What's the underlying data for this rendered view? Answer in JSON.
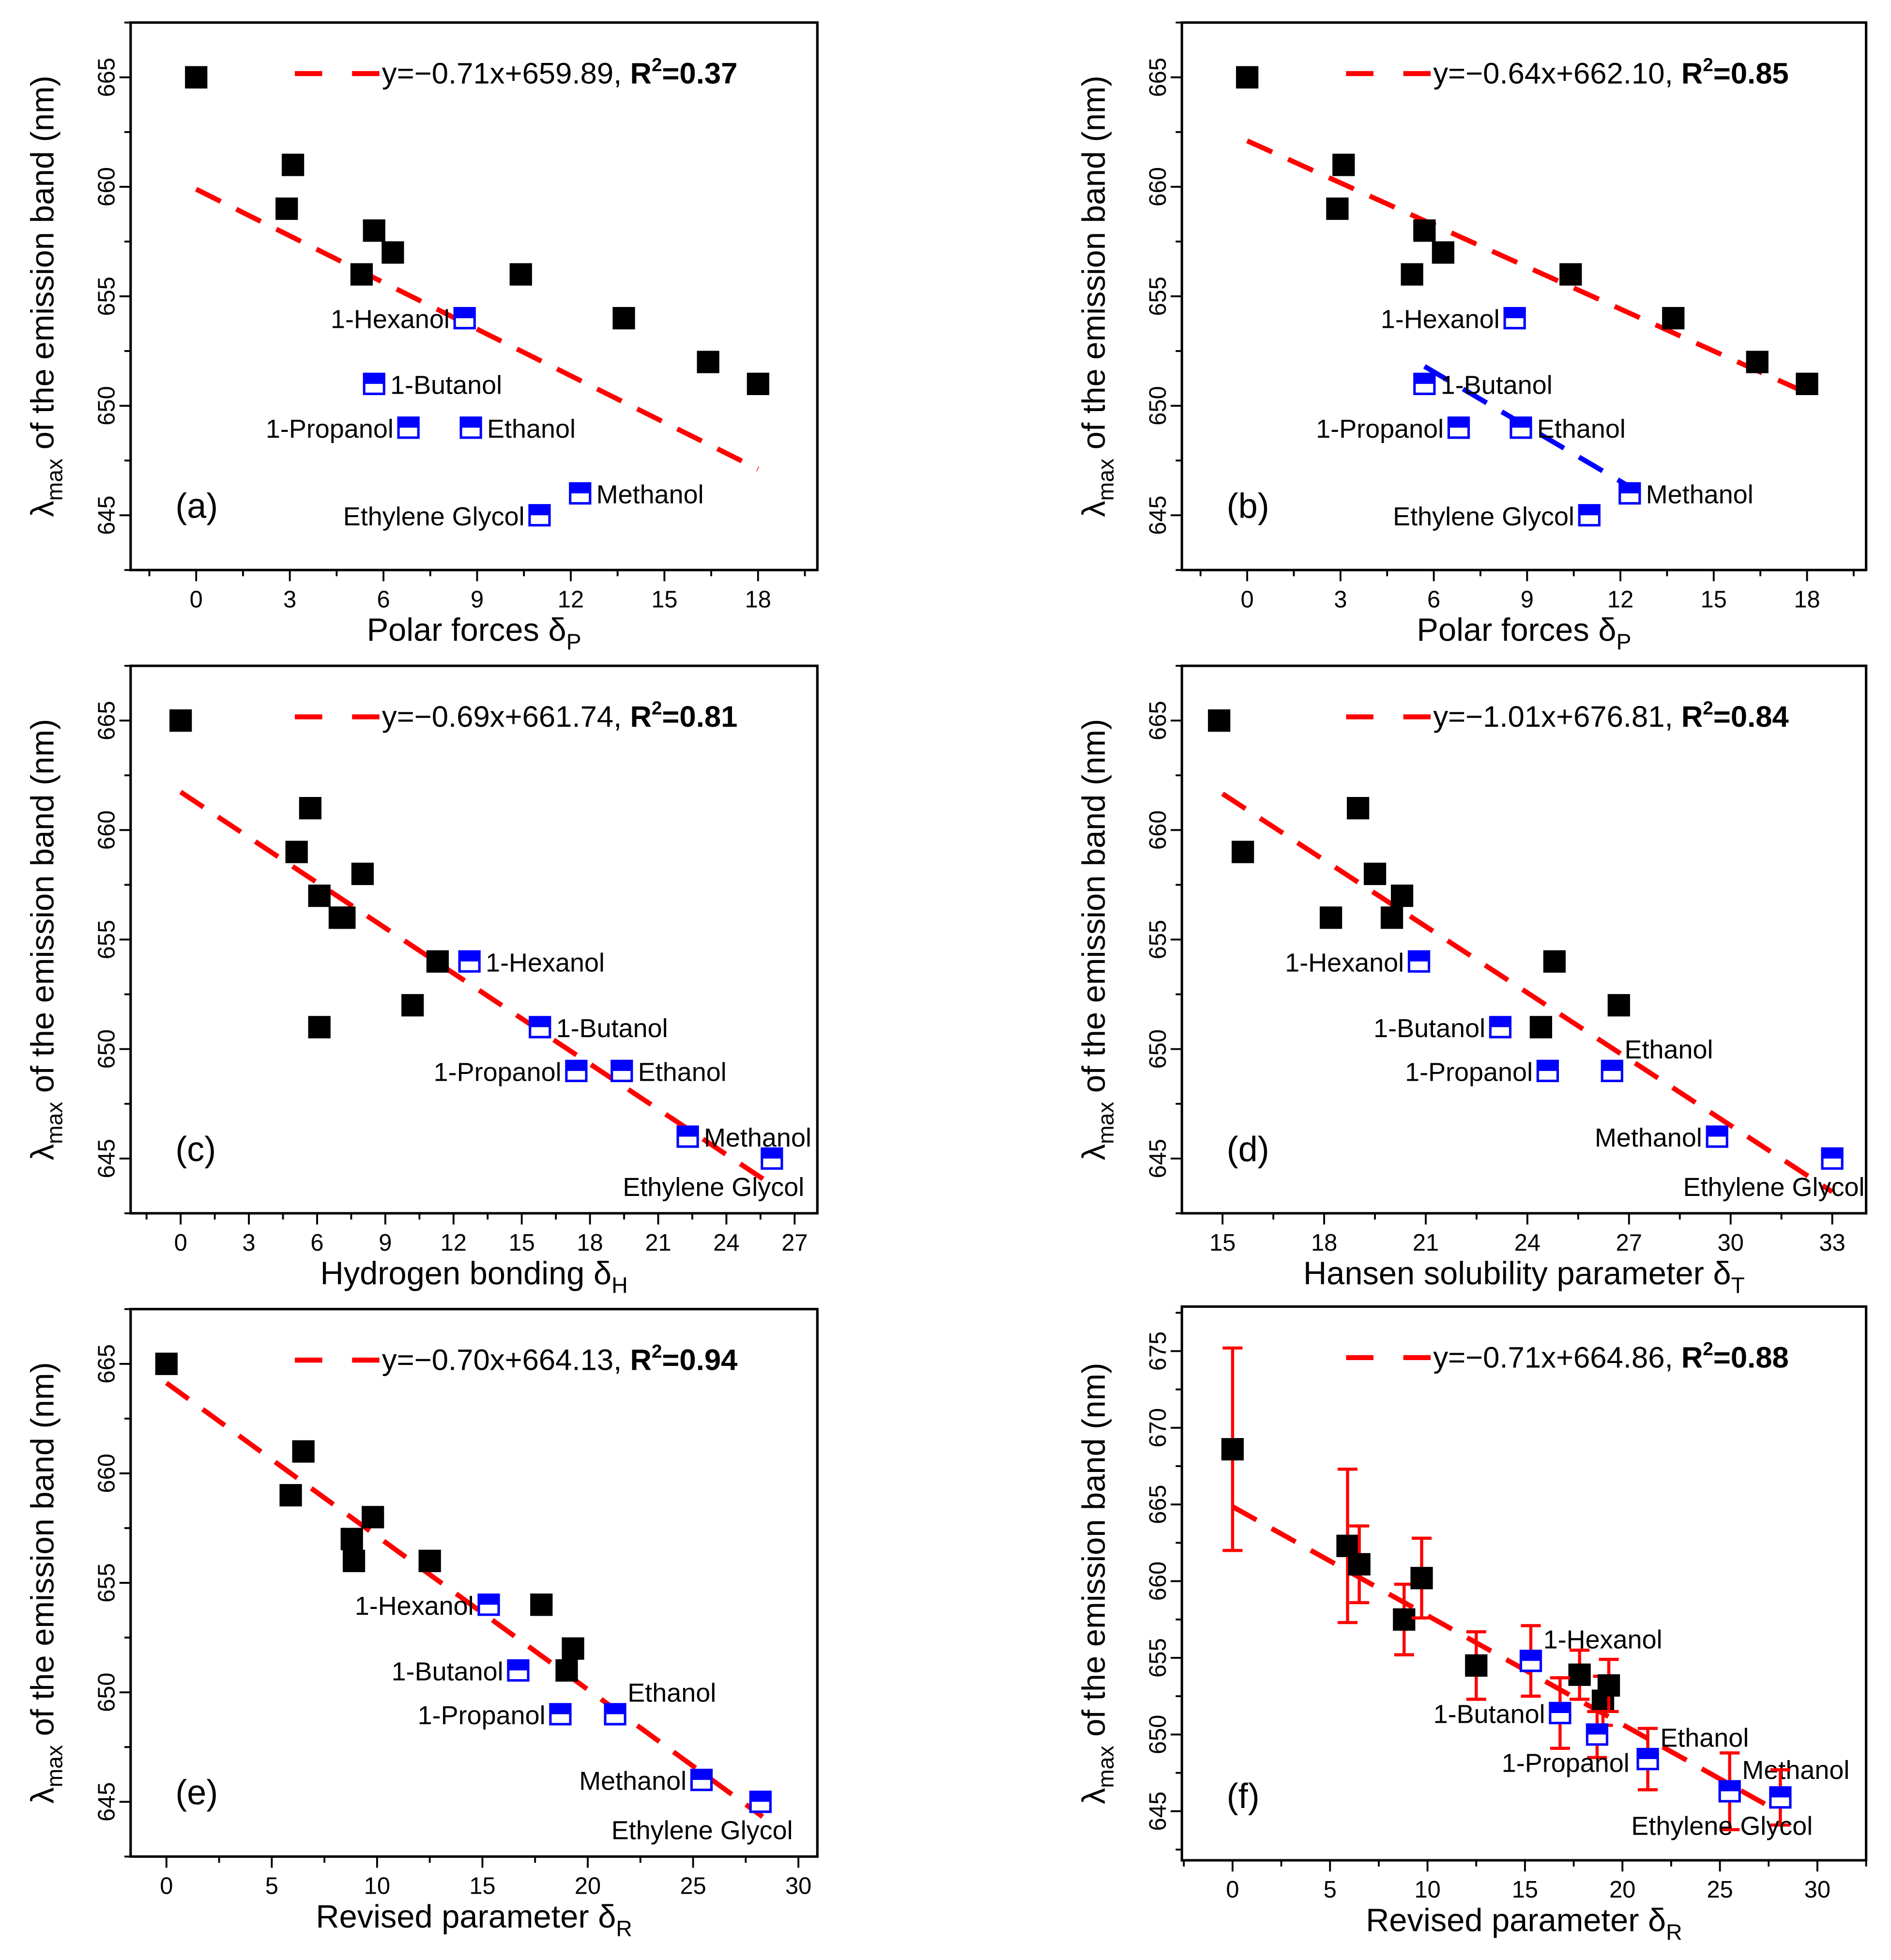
{
  "chart_data": [
    {
      "panel_label": "(a)",
      "type": "scatter",
      "xlabel": "Polar forces δ",
      "xlabel_sub": "P",
      "ylabel": "λ",
      "ylabel_sub": "max",
      "ylabel_rest": " of the emission band (nm)",
      "xlim": [
        -2.1,
        19.9
      ],
      "ylim": [
        642.5,
        667.5
      ],
      "xticks": [
        0,
        3,
        6,
        9,
        12,
        15,
        18
      ],
      "yticks": [
        645,
        650,
        655,
        660,
        665
      ],
      "fit": {
        "text": "y=−0.71x+659.89, ",
        "r2": "R",
        "r2_val": "=0.37",
        "slope": -0.71,
        "intercept": 659.89,
        "x_range": [
          0,
          18
        ]
      },
      "series_black": [
        [
          0,
          665
        ],
        [
          2.9,
          659
        ],
        [
          3.1,
          661
        ],
        [
          5.3,
          656
        ],
        [
          5.7,
          658
        ],
        [
          6.3,
          657
        ],
        [
          10.4,
          656
        ],
        [
          13.7,
          654
        ],
        [
          16.4,
          652
        ],
        [
          18,
          651
        ]
      ],
      "series_blue": [
        {
          "name": "1-Hexanol",
          "x": 8.6,
          "y": 654,
          "side": "left"
        },
        {
          "name": "1-Butanol",
          "x": 5.7,
          "y": 651,
          "side": "right"
        },
        {
          "name": "1-Propanol",
          "x": 6.8,
          "y": 649,
          "side": "left"
        },
        {
          "name": "Ethanol",
          "x": 8.8,
          "y": 649,
          "side": "right"
        },
        {
          "name": "Methanol",
          "x": 12.3,
          "y": 646,
          "side": "right"
        },
        {
          "name": "Ethylene Glycol",
          "x": 11,
          "y": 645,
          "side": "left"
        }
      ]
    },
    {
      "panel_label": "(b)",
      "type": "scatter",
      "xlabel": "Polar forces δ",
      "xlabel_sub": "P",
      "ylabel": "λ",
      "ylabel_sub": "max",
      "ylabel_rest": " of the emission band (nm)",
      "xlim": [
        -2.1,
        19.9
      ],
      "ylim": [
        642.5,
        667.5
      ],
      "xticks": [
        0,
        3,
        6,
        9,
        12,
        15,
        18
      ],
      "yticks": [
        645,
        650,
        655,
        660,
        665
      ],
      "fit": {
        "text": "y=−0.64x+662.10, ",
        "r2": "R",
        "r2_val": "=0.85",
        "slope": -0.64,
        "intercept": 662.1,
        "x_range": [
          0,
          18
        ]
      },
      "blue_fit": {
        "x_range": [
          5.7,
          12.3
        ],
        "y_range": [
          651.8,
          646.3
        ]
      },
      "series_black": [
        [
          0,
          665
        ],
        [
          2.9,
          659
        ],
        [
          3.1,
          661
        ],
        [
          5.3,
          656
        ],
        [
          5.7,
          658
        ],
        [
          6.3,
          657
        ],
        [
          10.4,
          656
        ],
        [
          13.7,
          654
        ],
        [
          16.4,
          652
        ],
        [
          18,
          651
        ]
      ],
      "series_blue": [
        {
          "name": "1-Hexanol",
          "x": 8.6,
          "y": 654,
          "side": "left"
        },
        {
          "name": "1-Butanol",
          "x": 5.7,
          "y": 651,
          "side": "right"
        },
        {
          "name": "1-Propanol",
          "x": 6.8,
          "y": 649,
          "side": "left"
        },
        {
          "name": "Ethanol",
          "x": 8.8,
          "y": 649,
          "side": "right"
        },
        {
          "name": "Methanol",
          "x": 12.3,
          "y": 646,
          "side": "right"
        },
        {
          "name": "Ethylene Glycol",
          "x": 11,
          "y": 645,
          "side": "left"
        }
      ]
    },
    {
      "panel_label": "(c)",
      "type": "scatter",
      "xlabel": "Hydrogen bonding δ",
      "xlabel_sub": "H",
      "ylabel": "λ",
      "ylabel_sub": "max",
      "ylabel_rest": " of the emission band (nm)",
      "xlim": [
        -2.2,
        28
      ],
      "ylim": [
        642.5,
        667.5
      ],
      "xticks": [
        0,
        3,
        6,
        9,
        12,
        15,
        18,
        21,
        24,
        27
      ],
      "yticks": [
        645,
        650,
        655,
        660,
        665
      ],
      "fit": {
        "text": "y=−0.69x+661.74, ",
        "r2": "R",
        "r2_val": "=0.81",
        "slope": -0.69,
        "intercept": 661.74,
        "x_range": [
          0,
          26
        ]
      },
      "series_black": [
        [
          0,
          665
        ],
        [
          5.1,
          659
        ],
        [
          5.7,
          661
        ],
        [
          6.1,
          657
        ],
        [
          7.0,
          656
        ],
        [
          7.2,
          656
        ],
        [
          8.0,
          658
        ],
        [
          6.1,
          651
        ],
        [
          10.2,
          652
        ],
        [
          11.3,
          654
        ]
      ],
      "series_blue": [
        {
          "name": "1-Hexanol",
          "x": 12.7,
          "y": 654,
          "side": "right"
        },
        {
          "name": "1-Butanol",
          "x": 15.8,
          "y": 651,
          "side": "right"
        },
        {
          "name": "1-Propanol",
          "x": 17.4,
          "y": 649,
          "side": "left"
        },
        {
          "name": "Ethanol",
          "x": 19.4,
          "y": 649,
          "side": "right"
        },
        {
          "name": "Methanol",
          "x": 22.3,
          "y": 646,
          "side": "right"
        },
        {
          "name": "Ethylene Glycol",
          "x": 26.0,
          "y": 645,
          "side": "below-left"
        }
      ]
    },
    {
      "panel_label": "(d)",
      "type": "scatter",
      "xlabel": "Hansen solubility parameter δ",
      "xlabel_sub": "T",
      "ylabel": "λ",
      "ylabel_sub": "max",
      "ylabel_rest": " of the emission band (nm)",
      "xlim": [
        13.8,
        34
      ],
      "ylim": [
        642.5,
        667.5
      ],
      "xticks": [
        15,
        18,
        21,
        24,
        27,
        30,
        33
      ],
      "yticks": [
        645,
        650,
        655,
        660,
        665
      ],
      "fit": {
        "text": "y=−1.01x+676.81, ",
        "r2": "R",
        "r2_val": "=0.84",
        "slope": -1.01,
        "intercept": 676.81,
        "x_range": [
          15,
          33
        ]
      },
      "series_black": [
        [
          14.9,
          665
        ],
        [
          15.6,
          659
        ],
        [
          18.2,
          656
        ],
        [
          19.0,
          661
        ],
        [
          19.5,
          658
        ],
        [
          20.3,
          657
        ],
        [
          20.0,
          656
        ],
        [
          24.8,
          654
        ],
        [
          24.4,
          651
        ],
        [
          26.7,
          652
        ]
      ],
      "series_blue": [
        {
          "name": "1-Hexanol",
          "x": 20.8,
          "y": 654,
          "side": "left"
        },
        {
          "name": "1-Butanol",
          "x": 23.2,
          "y": 651,
          "side": "left"
        },
        {
          "name": "1-Propanol",
          "x": 24.6,
          "y": 649,
          "side": "left"
        },
        {
          "name": "Ethanol",
          "x": 26.5,
          "y": 649,
          "side": "above-right"
        },
        {
          "name": "Methanol",
          "x": 29.6,
          "y": 646,
          "side": "left"
        },
        {
          "name": "Ethylene Glycol",
          "x": 33.0,
          "y": 645,
          "side": "below-left"
        }
      ]
    },
    {
      "panel_label": "(e)",
      "type": "scatter",
      "xlabel": "Revised parameter δ",
      "xlabel_sub": "R",
      "ylabel": "λ",
      "ylabel_sub": "max",
      "ylabel_rest": " of the emission band (nm)",
      "xlim": [
        -1.7,
        30.9
      ],
      "ylim": [
        642.5,
        667.5
      ],
      "xticks": [
        0,
        5,
        10,
        15,
        20,
        25,
        30
      ],
      "yticks": [
        645,
        650,
        655,
        660,
        665
      ],
      "fit": {
        "text": "y=−0.70x+664.13, ",
        "r2": "R",
        "r2_val": "=0.94",
        "slope": -0.7,
        "intercept": 664.13,
        "x_range": [
          0,
          28.3
        ]
      },
      "series_black": [
        [
          0,
          665
        ],
        [
          5.9,
          659
        ],
        [
          6.5,
          661
        ],
        [
          8.8,
          657
        ],
        [
          8.9,
          656
        ],
        [
          9.8,
          658
        ],
        [
          12.5,
          656
        ],
        [
          17.8,
          654
        ],
        [
          19.0,
          651
        ],
        [
          19.3,
          652
        ]
      ],
      "series_blue": [
        {
          "name": "1-Hexanol",
          "x": 15.3,
          "y": 654,
          "side": "left"
        },
        {
          "name": "1-Butanol",
          "x": 16.7,
          "y": 651,
          "side": "left"
        },
        {
          "name": "1-Propanol",
          "x": 18.7,
          "y": 649,
          "side": "left"
        },
        {
          "name": "Ethanol",
          "x": 21.3,
          "y": 649,
          "side": "above-right"
        },
        {
          "name": "Methanol",
          "x": 25.4,
          "y": 646,
          "side": "left"
        },
        {
          "name": "Ethylene Glycol",
          "x": 28.2,
          "y": 645,
          "side": "below-left"
        }
      ]
    },
    {
      "panel_label": "(f)",
      "type": "scatter",
      "xlabel": "Revised parameter δ",
      "xlabel_sub": "R",
      "ylabel": "λ",
      "ylabel_sub": "max",
      "ylabel_rest": " of the emission band (nm)",
      "xlim": [
        -2.6,
        32.5
      ],
      "ylim": [
        641.8,
        677.9
      ],
      "xticks": [
        0,
        5,
        10,
        15,
        20,
        25,
        30
      ],
      "yticks": [
        645,
        650,
        655,
        660,
        665,
        670,
        675
      ],
      "fit": {
        "text": "y=−0.71x+664.86, ",
        "r2": "R",
        "r2_val": "=0.88",
        "slope": -0.71,
        "intercept": 664.86,
        "x_range": [
          0,
          28
        ]
      },
      "series_black": [
        [
          0,
          668.6,
          6.6
        ],
        [
          5.9,
          662.3,
          5.0
        ],
        [
          6.5,
          661.1,
          2.5
        ],
        [
          8.8,
          657.5,
          2.3
        ],
        [
          9.7,
          660.2,
          2.6
        ],
        [
          12.5,
          654.5,
          2.2
        ],
        [
          17.8,
          653.9,
          1.6
        ],
        [
          19.0,
          652.2,
          1.6
        ],
        [
          19.3,
          653.2,
          1.7
        ]
      ],
      "series_blue": [
        {
          "name": "1-Hexanol",
          "x": 15.3,
          "y": 654.8,
          "err": 2.3,
          "side": "above-right"
        },
        {
          "name": "1-Butanol",
          "x": 16.8,
          "y": 651.4,
          "err": 2.3,
          "side": "left"
        },
        {
          "name": "1-Propanol",
          "x": 18.7,
          "y": 650.0,
          "err": 1.5,
          "side": "below-left"
        },
        {
          "name": "Ethanol",
          "x": 21.3,
          "y": 648.4,
          "err": 2.0,
          "side": "above-right"
        },
        {
          "name": "Methanol",
          "x": 25.5,
          "y": 646.3,
          "err": 2.5,
          "side": "above-right"
        },
        {
          "name": "Ethylene Glycol",
          "x": 28.1,
          "y": 645.9,
          "err": 1.8,
          "side": "below-left"
        }
      ]
    }
  ],
  "colors": {
    "fit": "#ff0000",
    "blue": "#0000ff",
    "black": "#000000"
  }
}
